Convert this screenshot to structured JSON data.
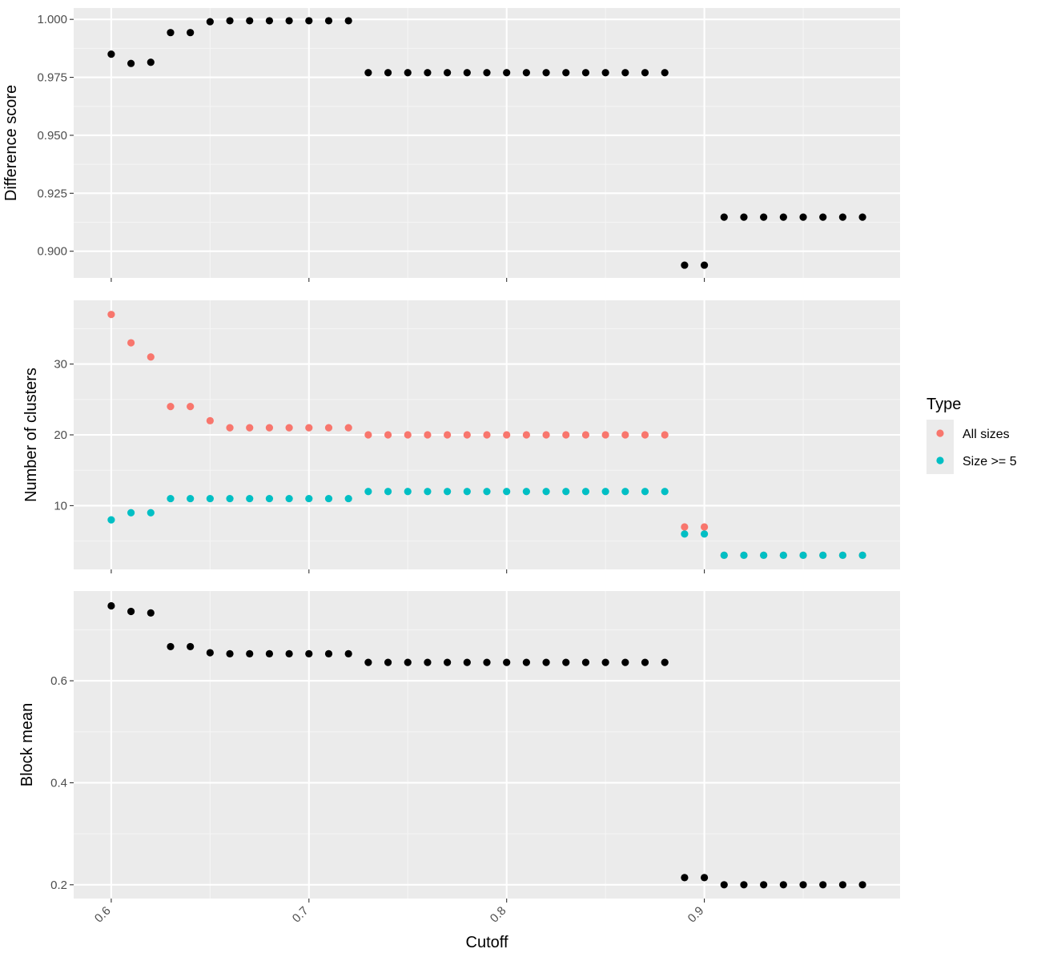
{
  "colors": {
    "panel_bg": "#EBEBEB",
    "grid_major": "#FFFFFF",
    "grid_minor": "#F5F5F5",
    "tick": "#333333",
    "point_default": "#000000",
    "all_sizes": "#F8766D",
    "size_ge_5": "#00BFC4"
  },
  "legend": {
    "title": "Type",
    "items": [
      {
        "label": "All sizes",
        "color": "#F8766D"
      },
      {
        "label": "Size >= 5",
        "color": "#00BFC4"
      }
    ]
  },
  "chart_data": [
    {
      "type": "scatter",
      "ylabel": "Difference score",
      "xlabel": "",
      "xlim": [
        0.581,
        0.999
      ],
      "ylim": [
        0.8885,
        1.0049
      ],
      "yticks": [
        0.9,
        0.925,
        0.95,
        0.975,
        1.0
      ],
      "yticklabels": [
        "0.900",
        "0.925",
        "0.950",
        "0.975",
        "1.000"
      ],
      "x": [
        0.6,
        0.61,
        0.62,
        0.63,
        0.64,
        0.65,
        0.66,
        0.67,
        0.68,
        0.69,
        0.7,
        0.71,
        0.72,
        0.73,
        0.74,
        0.75,
        0.76,
        0.77,
        0.78,
        0.79,
        0.8,
        0.81,
        0.82,
        0.83,
        0.84,
        0.85,
        0.86,
        0.87,
        0.88,
        0.89,
        0.9,
        0.91,
        0.92,
        0.93,
        0.94,
        0.95,
        0.96,
        0.97,
        0.98
      ],
      "series": [
        {
          "values": [
            0.985,
            0.981,
            0.9815,
            0.9943,
            0.9943,
            0.999,
            0.9994,
            0.9994,
            0.9994,
            0.9994,
            0.9994,
            0.9994,
            0.9994,
            0.977,
            0.977,
            0.977,
            0.977,
            0.977,
            0.977,
            0.977,
            0.977,
            0.977,
            0.977,
            0.977,
            0.977,
            0.977,
            0.977,
            0.977,
            0.977,
            0.894,
            0.894,
            0.9147,
            0.9147,
            0.9147,
            0.9147,
            0.9147,
            0.9147,
            0.9147,
            0.9147
          ],
          "color": "#000000"
        }
      ]
    },
    {
      "type": "scatter",
      "ylabel": "Number of clusters",
      "xlabel": "",
      "xlim": [
        0.581,
        0.999
      ],
      "ylim": [
        1.0,
        39.0
      ],
      "yticks": [
        10,
        20,
        30
      ],
      "yticklabels": [
        "10",
        "20",
        "30"
      ],
      "x": [
        0.6,
        0.61,
        0.62,
        0.63,
        0.64,
        0.65,
        0.66,
        0.67,
        0.68,
        0.69,
        0.7,
        0.71,
        0.72,
        0.73,
        0.74,
        0.75,
        0.76,
        0.77,
        0.78,
        0.79,
        0.8,
        0.81,
        0.82,
        0.83,
        0.84,
        0.85,
        0.86,
        0.87,
        0.88,
        0.89,
        0.9,
        0.91,
        0.92,
        0.93,
        0.94,
        0.95,
        0.96,
        0.97,
        0.98
      ],
      "series": [
        {
          "name": "All sizes",
          "color": "#F8766D",
          "values": [
            37,
            33,
            31,
            24,
            24,
            22,
            21,
            21,
            21,
            21,
            21,
            21,
            21,
            20,
            20,
            20,
            20,
            20,
            20,
            20,
            20,
            20,
            20,
            20,
            20,
            20,
            20,
            20,
            20,
            7,
            7,
            3,
            3,
            3,
            3,
            3,
            3,
            3,
            3
          ]
        },
        {
          "name": "Size >= 5",
          "color": "#00BFC4",
          "values": [
            8,
            9,
            9,
            11,
            11,
            11,
            11,
            11,
            11,
            11,
            11,
            11,
            11,
            12,
            12,
            12,
            12,
            12,
            12,
            12,
            12,
            12,
            12,
            12,
            12,
            12,
            12,
            12,
            12,
            6,
            6,
            3,
            3,
            3,
            3,
            3,
            3,
            3,
            3
          ]
        }
      ]
    },
    {
      "type": "scatter",
      "ylabel": "Block mean",
      "xlabel": "Cutoff",
      "xlim": [
        0.581,
        0.999
      ],
      "ylim": [
        0.173,
        0.776
      ],
      "yticks": [
        0.2,
        0.4,
        0.6
      ],
      "yticklabels": [
        "0.2",
        "0.4",
        "0.6"
      ],
      "xticks": [
        0.6,
        0.7,
        0.8,
        0.9
      ],
      "xticklabels": [
        "0.6",
        "0.7",
        "0.8",
        "0.9"
      ],
      "x": [
        0.6,
        0.61,
        0.62,
        0.63,
        0.64,
        0.65,
        0.66,
        0.67,
        0.68,
        0.69,
        0.7,
        0.71,
        0.72,
        0.73,
        0.74,
        0.75,
        0.76,
        0.77,
        0.78,
        0.79,
        0.8,
        0.81,
        0.82,
        0.83,
        0.84,
        0.85,
        0.86,
        0.87,
        0.88,
        0.89,
        0.9,
        0.91,
        0.92,
        0.93,
        0.94,
        0.95,
        0.96,
        0.97,
        0.98
      ],
      "series": [
        {
          "values": [
            0.747,
            0.736,
            0.733,
            0.667,
            0.667,
            0.655,
            0.653,
            0.653,
            0.653,
            0.653,
            0.653,
            0.653,
            0.653,
            0.636,
            0.636,
            0.636,
            0.636,
            0.636,
            0.636,
            0.636,
            0.636,
            0.636,
            0.636,
            0.636,
            0.636,
            0.636,
            0.636,
            0.636,
            0.636,
            0.214,
            0.214,
            0.2,
            0.2,
            0.2,
            0.2,
            0.2,
            0.2,
            0.2,
            0.2
          ],
          "color": "#000000"
        }
      ]
    }
  ]
}
